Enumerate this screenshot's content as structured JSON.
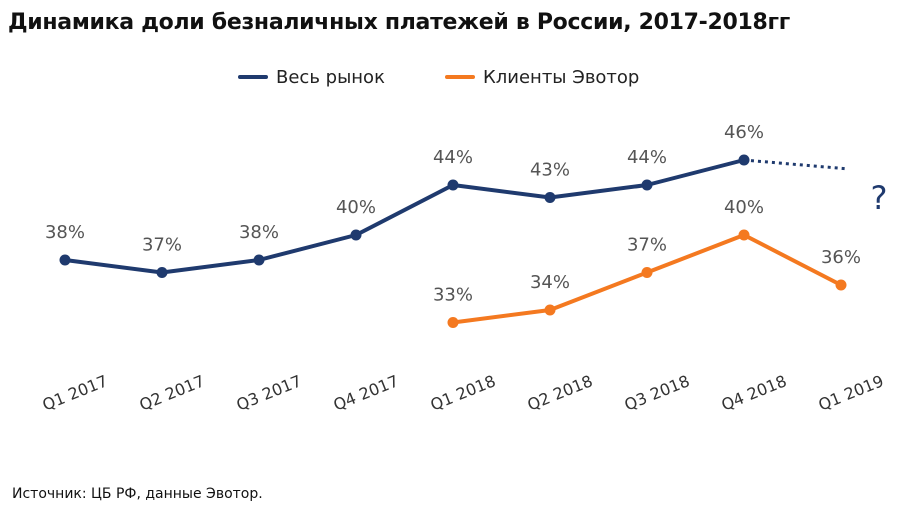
{
  "title": "Динамика доли безналичных платежей в России, 2017-2018гг",
  "source": "Источник: ЦБ РФ, данные Эвотор.",
  "colors": {
    "market": "#1f3a6e",
    "evotor": "#f47920"
  },
  "chart_data": {
    "type": "line",
    "title": "Динамика доли безналичных платежей в России, 2017-2018гг",
    "categories": [
      "Q1 2017",
      "Q2 2017",
      "Q3 2017",
      "Q4 2017",
      "Q1 2018",
      "Q2 2018",
      "Q3 2018",
      "Q4 2018",
      "Q1 2019"
    ],
    "series": [
      {
        "name": "Весь рынок",
        "values": [
          38,
          37,
          38,
          40,
          44,
          43,
          44,
          46,
          null
        ],
        "labels": [
          "38%",
          "37%",
          "38%",
          "40%",
          "44%",
          "43%",
          "44%",
          "46%",
          ""
        ],
        "forecast": {
          "from_index": 7,
          "to_index": 8,
          "to_value": 45.3,
          "style": "dotted",
          "label": "?"
        }
      },
      {
        "name": "Клиенты Эвотор",
        "values": [
          null,
          null,
          null,
          null,
          33,
          34,
          37,
          40,
          36
        ],
        "labels": [
          "",
          "",
          "",
          "",
          "33%",
          "34%",
          "37%",
          "40%",
          "36%"
        ]
      }
    ],
    "unit": "%",
    "ylim": [
      30,
      48
    ],
    "grid": false,
    "legend_position": "top-center"
  }
}
